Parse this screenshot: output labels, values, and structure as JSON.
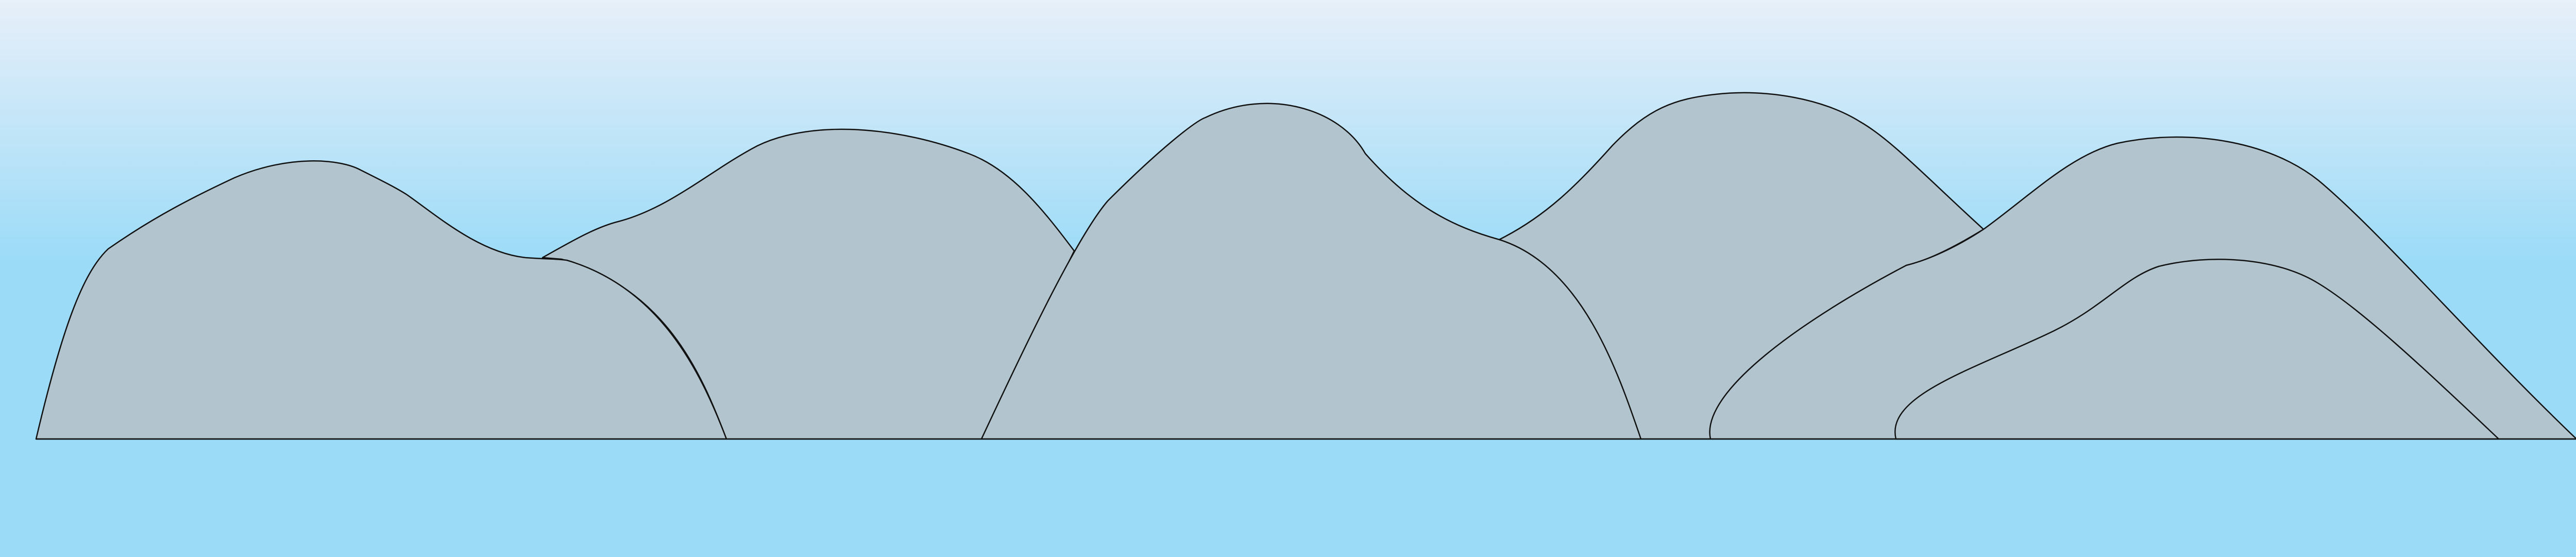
{
  "scene": {
    "sky_top_color": "#e8f0f8",
    "sky_bottom_color": "#9bdbf8",
    "water_color": "#9bdbf8",
    "hill_fill_color": "#b2c4ce",
    "outline_color": "#111111",
    "hill_count": 6
  }
}
